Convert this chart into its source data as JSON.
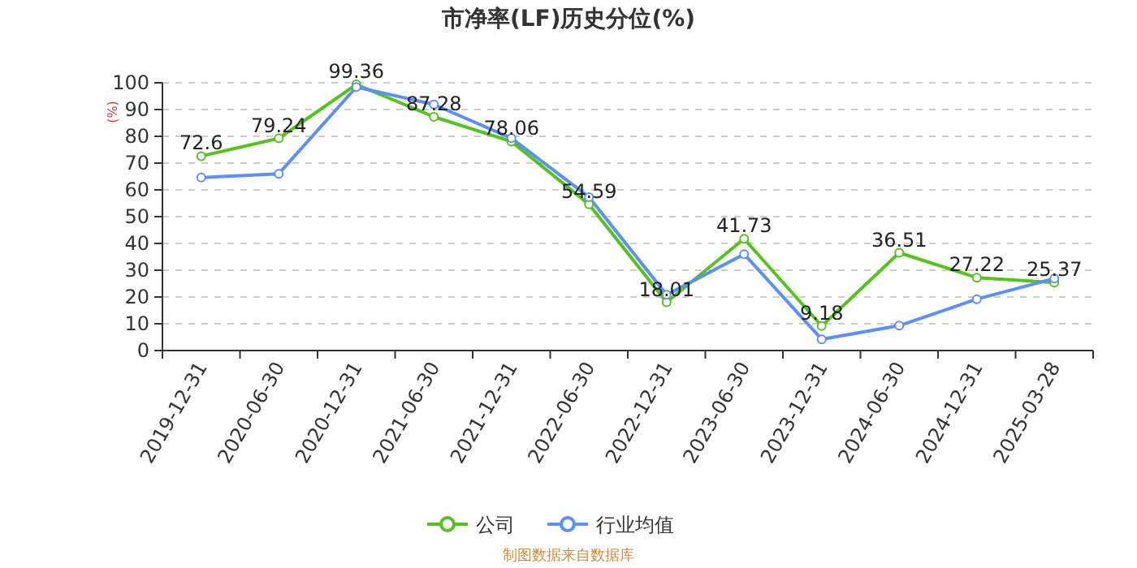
{
  "chart_data": {
    "type": "line",
    "title": "市净率(LF)历史分位(%)",
    "ylabel": "(%)",
    "categories": [
      "2019-12-31",
      "2020-06-30",
      "2020-12-31",
      "2021-06-30",
      "2021-12-31",
      "2022-06-30",
      "2022-12-31",
      "2023-06-30",
      "2023-12-31",
      "2024-06-30",
      "2024-12-31",
      "2025-03-28"
    ],
    "series": [
      {
        "name": "公司",
        "color": "#52c41a",
        "values": [
          72.6,
          79.24,
          99.36,
          87.28,
          78.06,
          54.59,
          18.01,
          41.73,
          9.18,
          36.51,
          27.22,
          25.37
        ],
        "data_labels": true
      },
      {
        "name": "行业均值",
        "color": "#5b8ff9",
        "values": [
          64.6,
          66,
          98.4,
          91.9,
          79.3,
          57.3,
          20.8,
          36,
          4.2,
          9.3,
          19.2,
          26.9
        ]
      }
    ],
    "ylim": [
      0,
      100
    ],
    "yticks": [
      0,
      10,
      20,
      30,
      40,
      50,
      60,
      70,
      80,
      90,
      100
    ],
    "grid": "y",
    "legend": "bottom",
    "marker": "circle",
    "line_style": "solid",
    "annotations": [
      "制图数据来自数据库"
    ]
  }
}
